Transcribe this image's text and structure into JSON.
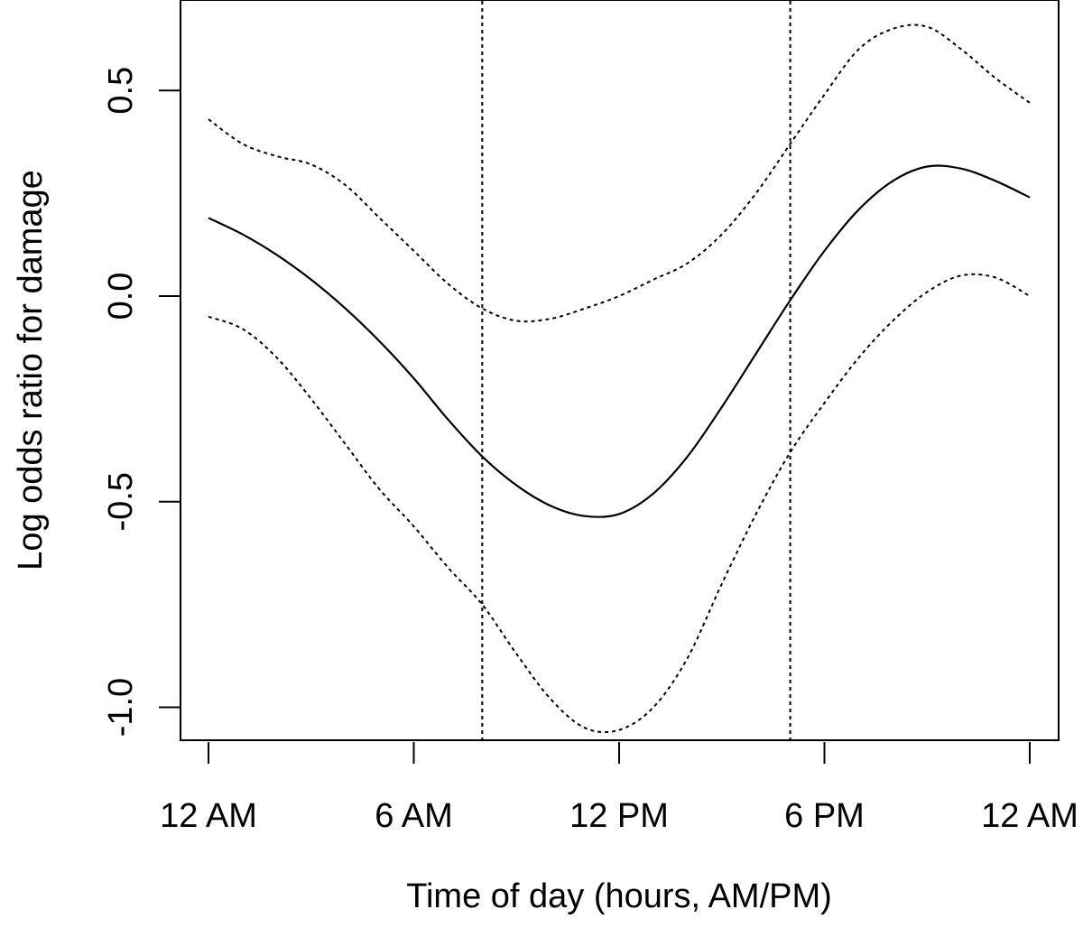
{
  "chart_data": {
    "type": "line",
    "title": "",
    "xlabel": "Time of day (hours, AM/PM)",
    "ylabel": "Log odds ratio for damage",
    "xlim": [
      0,
      24
    ],
    "ylim": [
      -1.08,
      0.72
    ],
    "grid": false,
    "x_ticks": [
      {
        "value": 0,
        "label": "12 AM"
      },
      {
        "value": 6,
        "label": "6 AM"
      },
      {
        "value": 12,
        "label": "12 PM"
      },
      {
        "value": 18,
        "label": "6 PM"
      },
      {
        "value": 24,
        "label": "12 AM"
      }
    ],
    "y_ticks": [
      {
        "value": -1.0,
        "label": "-1.0"
      },
      {
        "value": -0.5,
        "label": "-0.5"
      },
      {
        "value": 0.0,
        "label": "0.0"
      },
      {
        "value": 0.5,
        "label": "0.5"
      }
    ],
    "vlines": [
      {
        "name": "morning-boundary-line",
        "x": 8,
        "style": "dotted"
      },
      {
        "name": "evening-boundary-line",
        "x": 17,
        "style": "dotted"
      }
    ],
    "series": [
      {
        "name": "estimate",
        "style": "solid",
        "x": [
          0,
          1,
          2,
          3,
          4,
          5,
          6,
          7,
          8,
          9,
          10,
          11,
          12,
          13,
          14,
          15,
          16,
          17,
          18,
          19,
          20,
          21,
          22,
          23,
          24
        ],
        "y": [
          0.19,
          0.15,
          0.1,
          0.04,
          -0.03,
          -0.11,
          -0.2,
          -0.3,
          -0.39,
          -0.46,
          -0.51,
          -0.535,
          -0.53,
          -0.48,
          -0.39,
          -0.27,
          -0.14,
          -0.01,
          0.11,
          0.21,
          0.28,
          0.315,
          0.31,
          0.28,
          0.24
        ]
      },
      {
        "name": "upper-confidence-bound",
        "style": "dotted",
        "x": [
          0,
          1,
          2,
          3,
          4,
          5,
          6,
          7,
          8,
          9,
          10,
          11,
          12,
          13,
          14,
          15,
          16,
          17,
          18,
          19,
          20,
          21,
          22,
          23,
          24
        ],
        "y": [
          0.43,
          0.37,
          0.34,
          0.32,
          0.27,
          0.19,
          0.11,
          0.03,
          -0.03,
          -0.06,
          -0.055,
          -0.03,
          0.0,
          0.04,
          0.08,
          0.15,
          0.25,
          0.37,
          0.49,
          0.6,
          0.65,
          0.655,
          0.6,
          0.53,
          0.47
        ]
      },
      {
        "name": "lower-confidence-bound",
        "style": "dotted",
        "x": [
          0,
          1,
          2,
          3,
          4,
          5,
          6,
          7,
          8,
          9,
          10,
          11,
          12,
          13,
          14,
          15,
          16,
          17,
          18,
          19,
          20,
          21,
          22,
          23,
          24
        ],
        "y": [
          -0.05,
          -0.08,
          -0.15,
          -0.25,
          -0.36,
          -0.47,
          -0.56,
          -0.66,
          -0.75,
          -0.87,
          -0.98,
          -1.05,
          -1.055,
          -1.0,
          -0.88,
          -0.7,
          -0.53,
          -0.38,
          -0.26,
          -0.15,
          -0.06,
          0.01,
          0.05,
          0.045,
          0.0
        ]
      }
    ]
  }
}
